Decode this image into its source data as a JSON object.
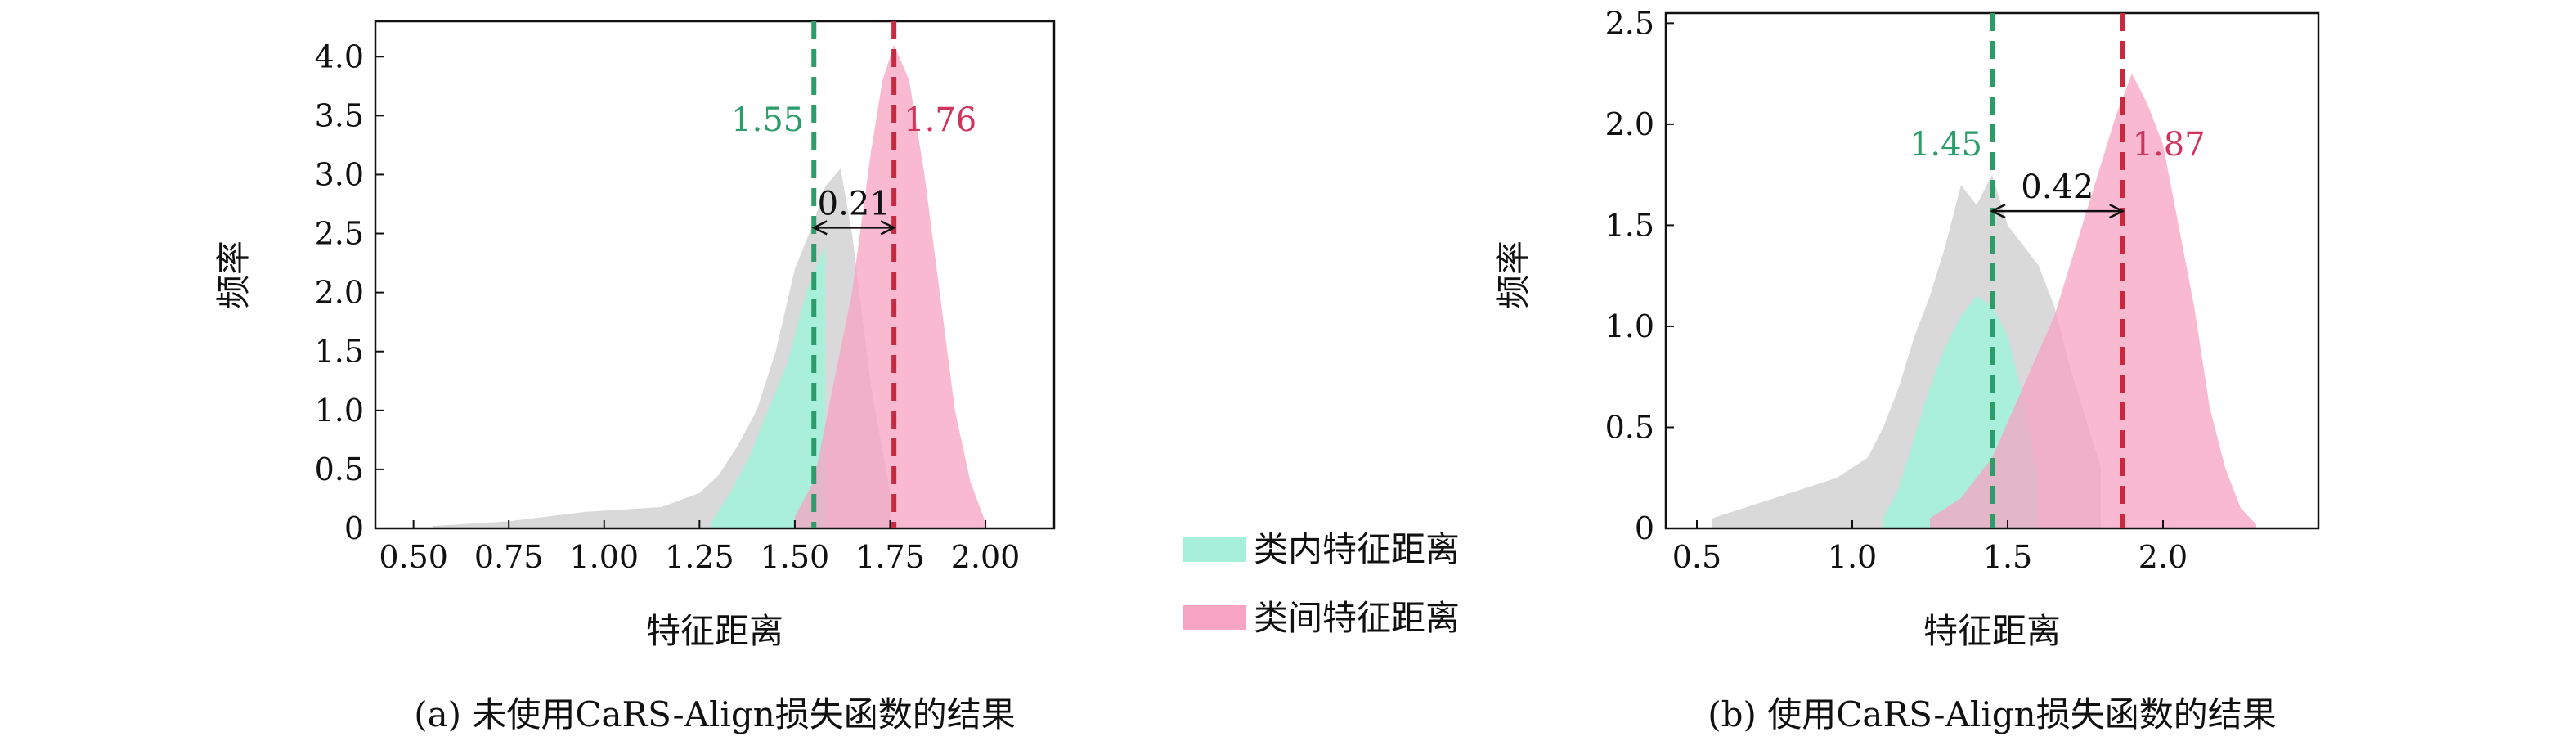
{
  "legend": {
    "items": [
      {
        "label": "类内特征距离",
        "color": "#a6f0d9"
      },
      {
        "label": "类间特征距离",
        "color": "#f7a3c2"
      }
    ]
  },
  "colors": {
    "grey": "#d9d9d9",
    "intra_fill": "#a6f0d9",
    "inter_fill": "#f7a3c2",
    "intra_line": "#2a9d6a",
    "inter_line": "#c62a3f",
    "intra_text": "#2a9d6a",
    "inter_text": "#d0335c"
  },
  "chart_data": [
    {
      "type": "histogram",
      "caption": "(a) 未使用CaRS-Align损失函数的结果",
      "xlabel": "特征距离",
      "ylabel": "频率",
      "xlim": [
        0.4,
        2.18
      ],
      "ylim": [
        0,
        4.3
      ],
      "xticks": [
        0.5,
        0.75,
        1.0,
        1.25,
        1.5,
        1.75,
        2.0
      ],
      "xtick_labels": [
        "0.50",
        "0.75",
        "1.00",
        "1.25",
        "1.50",
        "1.75",
        "2.00"
      ],
      "yticks": [
        0,
        0.5,
        1.0,
        1.5,
        2.0,
        2.5,
        3.0,
        3.5,
        4.0
      ],
      "ytick_labels": [
        "0",
        "0.5",
        "1.0",
        "1.5",
        "2.0",
        "2.5",
        "3.0",
        "3.5",
        "4.0"
      ],
      "series": [
        {
          "name": "类内特征距离",
          "kind": "overall",
          "x": [
            0.55,
            0.65,
            0.75,
            0.85,
            0.95,
            1.05,
            1.15,
            1.25,
            1.3,
            1.35,
            1.4,
            1.45,
            1.5,
            1.55,
            1.58,
            1.62,
            1.65,
            1.7,
            1.75
          ],
          "y": [
            0.02,
            0.04,
            0.06,
            0.1,
            0.14,
            0.16,
            0.18,
            0.3,
            0.45,
            0.7,
            1.0,
            1.5,
            2.2,
            2.6,
            2.9,
            3.05,
            2.5,
            1.2,
            0.3
          ]
        },
        {
          "name": "类内特征距离",
          "kind": "intra",
          "x": [
            1.28,
            1.33,
            1.38,
            1.43,
            1.48,
            1.53,
            1.58
          ],
          "y": [
            0.05,
            0.3,
            0.6,
            1.0,
            1.4,
            2.0,
            2.4
          ]
        },
        {
          "name": "类间特征距离",
          "kind": "inter",
          "x": [
            1.5,
            1.55,
            1.6,
            1.65,
            1.7,
            1.73,
            1.76,
            1.8,
            1.84,
            1.88,
            1.92,
            1.96,
            2.0
          ],
          "y": [
            0.1,
            0.4,
            1.2,
            2.0,
            3.2,
            3.8,
            4.1,
            3.8,
            3.0,
            2.0,
            1.0,
            0.4,
            0.05
          ]
        }
      ],
      "vlines": [
        {
          "x": 1.55,
          "label": "1.55",
          "color": "#2a9d6a"
        },
        {
          "x": 1.76,
          "label": "1.76",
          "color": "#c62a3f"
        }
      ],
      "arrow": {
        "x1": 1.55,
        "x2": 1.76,
        "y": 2.55,
        "label": "0.21"
      }
    },
    {
      "type": "histogram",
      "caption": "(b) 使用CaRS-Align损失函数的结果",
      "xlabel": "特征距离",
      "ylabel": "频率",
      "xlim": [
        0.4,
        2.5
      ],
      "ylim": [
        0,
        2.55
      ],
      "xticks": [
        0.5,
        1.0,
        1.5,
        2.0
      ],
      "xtick_labels": [
        "0.5",
        "1.0",
        "1.5",
        "2.0"
      ],
      "yticks": [
        0,
        0.5,
        1.0,
        1.5,
        2.0,
        2.5
      ],
      "ytick_labels": [
        "0",
        "0.5",
        "1.0",
        "1.5",
        "2.0",
        "2.5"
      ],
      "series": [
        {
          "name": "类内特征距离",
          "kind": "overall",
          "x": [
            0.55,
            0.65,
            0.75,
            0.85,
            0.95,
            1.05,
            1.1,
            1.15,
            1.2,
            1.25,
            1.3,
            1.35,
            1.4,
            1.45,
            1.5,
            1.55,
            1.6,
            1.65,
            1.7,
            1.8
          ],
          "y": [
            0.05,
            0.1,
            0.15,
            0.2,
            0.25,
            0.35,
            0.5,
            0.7,
            0.95,
            1.15,
            1.4,
            1.7,
            1.6,
            1.75,
            1.5,
            1.4,
            1.3,
            1.1,
            0.8,
            0.3
          ]
        },
        {
          "name": "类内特征距离",
          "kind": "intra",
          "x": [
            1.1,
            1.15,
            1.2,
            1.25,
            1.3,
            1.35,
            1.4,
            1.45,
            1.5,
            1.55,
            1.6
          ],
          "y": [
            0.05,
            0.2,
            0.45,
            0.7,
            0.9,
            1.05,
            1.15,
            1.1,
            0.95,
            0.65,
            0.25
          ]
        },
        {
          "name": "类间特征距离",
          "kind": "inter",
          "x": [
            1.25,
            1.35,
            1.45,
            1.55,
            1.65,
            1.75,
            1.85,
            1.9,
            1.95,
            2.0,
            2.05,
            2.1,
            2.15,
            2.2,
            2.25,
            2.3
          ],
          "y": [
            0.05,
            0.15,
            0.35,
            0.7,
            1.05,
            1.55,
            2.05,
            2.25,
            2.1,
            1.9,
            1.5,
            1.1,
            0.6,
            0.3,
            0.1,
            0.02
          ]
        }
      ],
      "vlines": [
        {
          "x": 1.45,
          "label": "1.45",
          "color": "#2a9d6a"
        },
        {
          "x": 1.87,
          "label": "1.87",
          "color": "#c62a3f"
        }
      ],
      "arrow": {
        "x1": 1.45,
        "x2": 1.87,
        "y": 1.57,
        "label": "0.42"
      }
    }
  ]
}
